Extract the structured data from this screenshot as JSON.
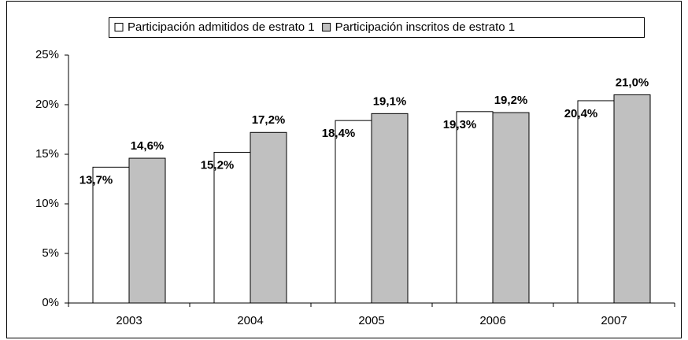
{
  "chart_data": {
    "type": "bar",
    "categories": [
      "2003",
      "2004",
      "2005",
      "2006",
      "2007"
    ],
    "series": [
      {
        "name": "Participación admitidos de estrato 1",
        "color": "#ffffff",
        "values": [
          13.7,
          15.2,
          18.4,
          19.3,
          20.4
        ],
        "value_labels": [
          "13,7%",
          "15,2%",
          "18,4%",
          "19,3%",
          "20,4%"
        ]
      },
      {
        "name": "Participación inscritos de estrato 1",
        "color": "#c0c0c0",
        "values": [
          14.6,
          17.2,
          19.1,
          19.2,
          21.0
        ],
        "value_labels": [
          "14,6%",
          "17,2%",
          "19,1%",
          "19,2%",
          "21,0%"
        ]
      }
    ],
    "ylim": [
      0,
      25
    ],
    "yticks": [
      {
        "value": 0,
        "label": "0%"
      },
      {
        "value": 5,
        "label": "5%"
      },
      {
        "value": 10,
        "label": "10%"
      },
      {
        "value": 15,
        "label": "15%"
      },
      {
        "value": 20,
        "label": "20%"
      },
      {
        "value": 25,
        "label": "25%"
      }
    ],
    "grid": false,
    "legend": "top"
  }
}
